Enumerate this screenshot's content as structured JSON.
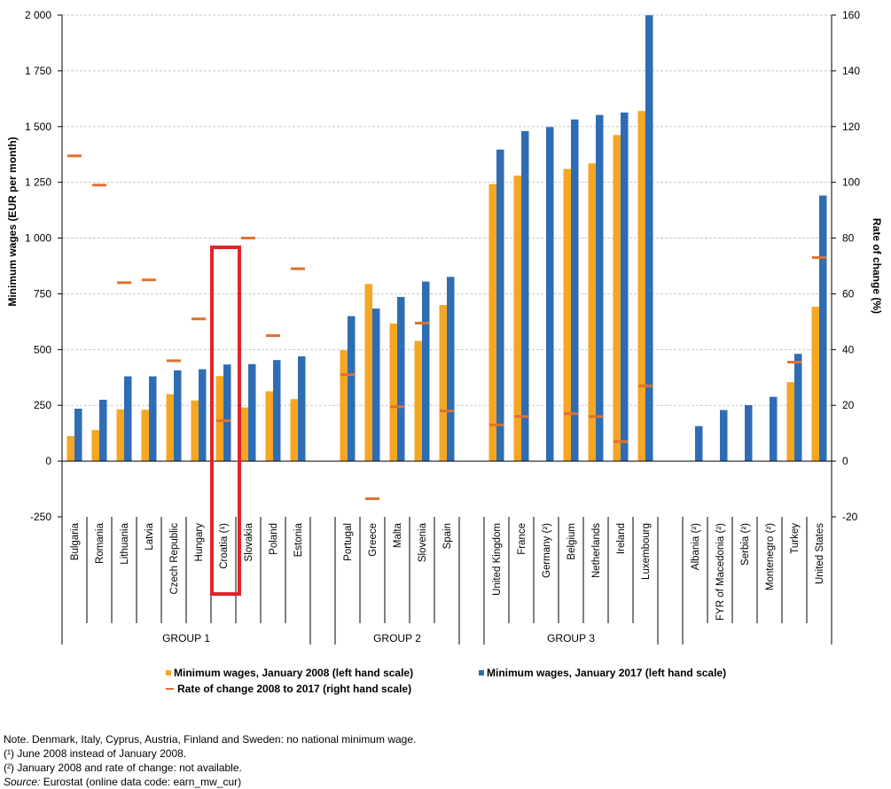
{
  "chart_data": {
    "type": "bar",
    "left_axis": {
      "title": "Minimum wages (EUR per month)",
      "ylim": [
        -250,
        2000
      ],
      "ticks": [
        "-250",
        "0",
        "250",
        "500",
        "750",
        "1 000",
        "1 250",
        "1 500",
        "1 750",
        "2 000"
      ]
    },
    "right_axis": {
      "title": "Rate of change (%)",
      "ylim": [
        -20,
        160
      ],
      "ticks": [
        "-20",
        "0",
        "20",
        "40",
        "60",
        "80",
        "100",
        "120",
        "140",
        "160"
      ]
    },
    "grid": true,
    "categories": [
      "Bulgaria",
      "Romania",
      "Lithuania",
      "Latvia",
      "Czech Republic",
      "Hungary",
      "Croatia (¹)",
      "Slovakia",
      "Poland",
      "Estonia",
      "",
      "Portugal",
      "Greece",
      "Malta",
      "Slovenia",
      "Spain",
      "",
      "United Kingdom",
      "France",
      "Germany (²)",
      "Belgium",
      "Netherlands",
      "Ireland",
      "Luxembourg",
      "",
      "Albania (²)",
      "FYR of Macedonia (²)",
      "Serbia (²)",
      "Montenegro (²)",
      "Turkey",
      "United States"
    ],
    "groups": [
      {
        "label": "GROUP 1",
        "count": 10
      },
      {
        "label": "GROUP 2",
        "count": 5
      },
      {
        "label": "GROUP 3",
        "count": 7
      }
    ],
    "series": [
      {
        "name": "Minimum wages, January 2008 (left hand scale)",
        "color": "#f5a623",
        "axis": "left",
        "values": [
          112,
          139,
          232,
          230,
          300,
          272,
          381,
          241,
          313,
          278,
          null,
          497,
          794,
          617,
          539,
          700,
          null,
          1242,
          1280,
          null,
          1310,
          1335,
          1462,
          1570,
          null,
          null,
          null,
          null,
          null,
          354,
          692
        ]
      },
      {
        "name": "Minimum wages, January 2017 (left hand scale)",
        "color": "#2e6db4",
        "axis": "left",
        "values": [
          235,
          275,
          380,
          380,
          407,
          412,
          433,
          435,
          453,
          470,
          null,
          650,
          684,
          736,
          805,
          826,
          null,
          1397,
          1480,
          1498,
          1532,
          1552,
          1563,
          1999,
          null,
          157,
          229,
          251,
          288,
          481,
          1191
        ]
      },
      {
        "name": "Rate of change 2008 to 2017 (right hand scale)",
        "color": "#e07030",
        "axis": "right",
        "marker": "dash",
        "values": [
          109.5,
          99,
          64,
          65,
          36,
          51,
          14.5,
          80,
          45,
          69,
          null,
          31,
          -13.5,
          19.5,
          49.5,
          18,
          null,
          13,
          16,
          null,
          17,
          16,
          7,
          27,
          null,
          null,
          null,
          null,
          null,
          35.5,
          73
        ]
      }
    ],
    "highlight": "Croatia (¹)",
    "legend_placement": "bottom"
  },
  "notes": {
    "line1": "Note. Denmark, Italy, Cyprus, Austria, Finland and Sweden: no national minimum wage.",
    "line2": "(¹) June 2008 instead of January 2008.",
    "line3": "(²) January 2008 and rate of change: not available.",
    "source_label": "Source:",
    "source_text": " Eurostat (online data code: earn_mw_cur)"
  }
}
